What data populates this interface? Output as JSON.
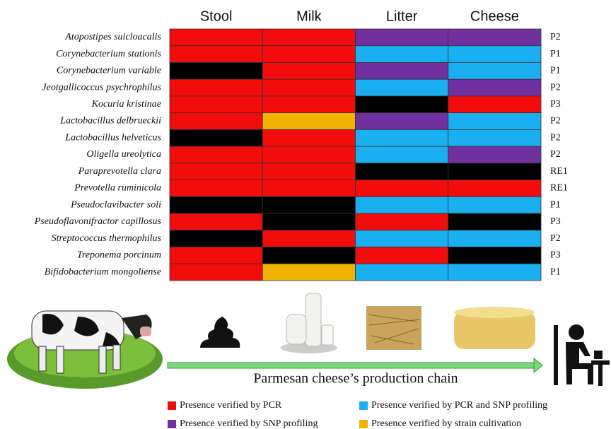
{
  "columns": [
    "Stool",
    "Milk",
    "Litter",
    "Cheese"
  ],
  "rows": [
    {
      "species": "Atopostipes suicloacalis",
      "cells": [
        "#f20c0c",
        "#f20c0c",
        "#7030a0",
        "#7030a0"
      ],
      "label": "P2"
    },
    {
      "species": "Corynebacterium stationis",
      "cells": [
        "#f20c0c",
        "#f20c0c",
        "#1aaff0",
        "#1aaff0"
      ],
      "label": "P1"
    },
    {
      "species": "Corynebacterium variable",
      "cells": [
        "#000000",
        "#f20c0c",
        "#7030a0",
        "#1aaff0"
      ],
      "label": "P1"
    },
    {
      "species": "Jeotgallicoccus psychrophilus",
      "cells": [
        "#f20c0c",
        "#f20c0c",
        "#1aaff0",
        "#7030a0"
      ],
      "label": "P2"
    },
    {
      "species": "Kocuria kristinae",
      "cells": [
        "#f20c0c",
        "#f20c0c",
        "#000000",
        "#f20c0c"
      ],
      "label": "P3"
    },
    {
      "species": "Lactobacillus delbrueckii",
      "cells": [
        "#f20c0c",
        "#f0b400",
        "#7030a0",
        "#1aaff0"
      ],
      "label": "P2"
    },
    {
      "species": "Lactobacillus helveticus",
      "cells": [
        "#000000",
        "#f20c0c",
        "#1aaff0",
        "#1aaff0"
      ],
      "label": "P2"
    },
    {
      "species": "Oligella ureolytica",
      "cells": [
        "#f20c0c",
        "#f20c0c",
        "#1aaff0",
        "#7030a0"
      ],
      "label": "P2"
    },
    {
      "species": "Paraprevotella clara",
      "cells": [
        "#f20c0c",
        "#f20c0c",
        "#000000",
        "#000000"
      ],
      "label": "RE1"
    },
    {
      "species": "Prevotella ruminicola",
      "cells": [
        "#f20c0c",
        "#f20c0c",
        "#f20c0c",
        "#f20c0c"
      ],
      "label": "RE1"
    },
    {
      "species": "Pseudoclavibacter soli",
      "cells": [
        "#000000",
        "#000000",
        "#1aaff0",
        "#1aaff0"
      ],
      "label": "P1"
    },
    {
      "species": "Pseudoflavonifractor capillosus",
      "cells": [
        "#f20c0c",
        "#000000",
        "#f20c0c",
        "#000000"
      ],
      "label": "P3"
    },
    {
      "species": "Streptococcus thermophilus",
      "cells": [
        "#000000",
        "#f20c0c",
        "#1aaff0",
        "#1aaff0"
      ],
      "label": "P2"
    },
    {
      "species": "Treponema porcinum",
      "cells": [
        "#f20c0c",
        "#000000",
        "#f20c0c",
        "#000000"
      ],
      "label": "P3"
    },
    {
      "species": "Bifidobacterium mongoliense",
      "cells": [
        "#f20c0c",
        "#f0b400",
        "#1aaff0",
        "#1aaff0"
      ],
      "label": "P1"
    }
  ],
  "caption": "Parmesan cheese’s production chain",
  "legend": [
    {
      "color": "#f20c0c",
      "text": "Presence verified by PCR"
    },
    {
      "color": "#1aaff0",
      "text": "Presence verified by PCR and SNP profiling"
    },
    {
      "color": "#7030a0",
      "text": "Presence verified by SNP profiling"
    },
    {
      "color": "#f0b400",
      "text": "Presence verified by strain cultivation"
    }
  ]
}
